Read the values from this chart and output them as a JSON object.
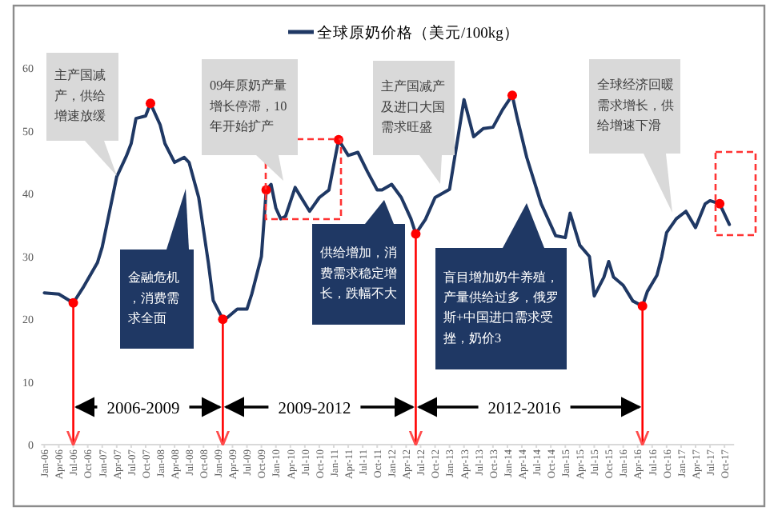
{
  "chart_data": {
    "type": "line",
    "legend": "top",
    "ylim": [
      0,
      60
    ],
    "yticks": [
      0,
      10,
      20,
      30,
      40,
      50,
      60
    ],
    "xlim": [
      "2006-01",
      "2017-12"
    ],
    "xticks": [
      {
        "value": "2006-01",
        "label": "Jan-06"
      },
      {
        "value": "2006-04",
        "label": "Apr-06"
      },
      {
        "value": "2006-07",
        "label": "Jul-06"
      },
      {
        "value": "2006-10",
        "label": "Oct-06"
      },
      {
        "value": "2007-01",
        "label": "Jan-07"
      },
      {
        "value": "2007-04",
        "label": "Apr-07"
      },
      {
        "value": "2007-07",
        "label": "Jul-07"
      },
      {
        "value": "2007-10",
        "label": "Oct-07"
      },
      {
        "value": "2008-01",
        "label": "Jan-08"
      },
      {
        "value": "2008-04",
        "label": "Apr-08"
      },
      {
        "value": "2008-07",
        "label": "Jul-08"
      },
      {
        "value": "2008-10",
        "label": "Oct-08"
      },
      {
        "value": "2009-01",
        "label": "Jan-09"
      },
      {
        "value": "2009-04",
        "label": "Apr-09"
      },
      {
        "value": "2009-07",
        "label": "Jul-09"
      },
      {
        "value": "2009-10",
        "label": "Oct-09"
      },
      {
        "value": "2010-01",
        "label": "Jan-10"
      },
      {
        "value": "2010-04",
        "label": "Apr-10"
      },
      {
        "value": "2010-07",
        "label": "Jul-10"
      },
      {
        "value": "2010-10",
        "label": "Oct-10"
      },
      {
        "value": "2011-01",
        "label": "Jan-11"
      },
      {
        "value": "2011-04",
        "label": "Apr-11"
      },
      {
        "value": "2011-07",
        "label": "Jul-11"
      },
      {
        "value": "2011-10",
        "label": "Oct-11"
      },
      {
        "value": "2012-01",
        "label": "Jan-12"
      },
      {
        "value": "2012-04",
        "label": "Apr-12"
      },
      {
        "value": "2012-07",
        "label": "Jul-12"
      },
      {
        "value": "2012-10",
        "label": "Oct-12"
      },
      {
        "value": "2013-01",
        "label": "Jan-13"
      },
      {
        "value": "2013-04",
        "label": "Apr-13"
      },
      {
        "value": "2013-07",
        "label": "Jul-13"
      },
      {
        "value": "2013-10",
        "label": "Oct-13"
      },
      {
        "value": "2014-01",
        "label": "Jan-14"
      },
      {
        "value": "2014-04",
        "label": "Apr-14"
      },
      {
        "value": "2014-07",
        "label": "Jul-14"
      },
      {
        "value": "2014-10",
        "label": "Oct-14"
      },
      {
        "value": "2015-01",
        "label": "Jan-15"
      },
      {
        "value": "2015-04",
        "label": "Apr-15"
      },
      {
        "value": "2015-07",
        "label": "Jul-15"
      },
      {
        "value": "2015-10",
        "label": "Oct-15"
      },
      {
        "value": "2016-01",
        "label": "Jan-16"
      },
      {
        "value": "2016-04",
        "label": "Apr-16"
      },
      {
        "value": "2016-07",
        "label": "Jul-16"
      },
      {
        "value": "2016-10",
        "label": "Oct-16"
      },
      {
        "value": "2017-01",
        "label": "Jan-17"
      },
      {
        "value": "2017-04",
        "label": "Apr-17"
      },
      {
        "value": "2017-07",
        "label": "Jul-17"
      },
      {
        "value": "2017-10",
        "label": "Oct-17"
      }
    ],
    "series": [
      {
        "name": "全球原奶价格（美元/100kg）",
        "color": "#1f3864",
        "x": [
          "2006-01",
          "2006-04",
          "2006-07",
          "2006-09",
          "2006-12",
          "2007-01",
          "2007-04",
          "2007-06",
          "2007-07",
          "2007-08",
          "2007-10",
          "2007-11",
          "2008-01",
          "2008-02",
          "2008-04",
          "2008-06",
          "2008-07",
          "2008-09",
          "2008-11",
          "2008-12",
          "2009-02",
          "2009-03",
          "2009-05",
          "2009-07",
          "2009-08",
          "2009-10",
          "2009-11",
          "2009-12",
          "2010-01",
          "2010-02",
          "2010-03",
          "2010-05",
          "2010-06",
          "2010-08",
          "2010-10",
          "2010-12",
          "2011-02",
          "2011-04",
          "2011-06",
          "2011-08",
          "2011-10",
          "2011-11",
          "2012-01",
          "2012-03",
          "2012-05",
          "2012-06",
          "2012-08",
          "2012-10",
          "2013-01",
          "2013-04",
          "2013-06",
          "2013-08",
          "2013-10",
          "2013-12",
          "2014-02",
          "2014-03",
          "2014-05",
          "2014-08",
          "2014-11",
          "2015-01",
          "2015-02",
          "2015-04",
          "2015-06",
          "2015-07",
          "2015-09",
          "2015-10",
          "2015-11",
          "2016-01",
          "2016-03",
          "2016-05",
          "2016-06",
          "2016-08",
          "2016-09",
          "2016-10",
          "2016-12",
          "2017-02",
          "2017-04",
          "2017-06",
          "2017-07",
          "2017-09",
          "2017-11"
        ],
        "values": [
          24.2,
          24,
          22.6,
          25,
          29,
          31.5,
          42.7,
          46,
          48,
          52,
          52.4,
          54.4,
          51,
          48,
          45,
          45.8,
          45,
          39.4,
          29,
          23,
          20,
          20.3,
          21.6,
          21.6,
          24,
          30,
          40.6,
          41.5,
          37.7,
          36,
          36.4,
          41,
          39.7,
          37.2,
          39.4,
          40.6,
          48.6,
          46.1,
          46.6,
          43.5,
          40.6,
          40.6,
          41.5,
          39.4,
          36,
          33.6,
          35.9,
          39.4,
          40.7,
          55,
          49.1,
          50.4,
          50.6,
          53.4,
          55.7,
          52.2,
          45.8,
          38.4,
          33.3,
          33,
          36.9,
          31.8,
          30,
          23.7,
          26.7,
          29.2,
          26.7,
          25.4,
          22.9,
          22.1,
          24.4,
          27,
          30,
          33.8,
          36,
          37.2,
          34.6,
          38.4,
          38.9,
          38.4,
          35.1
        ]
      },
      {
        "type": "scatter",
        "color": "#ff0000",
        "x": [
          "2006-07",
          "2007-11",
          "2009-02",
          "2009-11",
          "2011-02",
          "2012-06",
          "2014-02",
          "2016-05",
          "2017-09"
        ],
        "values": [
          22.6,
          54.4,
          20,
          40.6,
          48.6,
          33.6,
          55.7,
          22.1,
          38.4
        ]
      }
    ],
    "ref_lines": [
      {
        "axis": "x",
        "value": "2006-07",
        "color": "#ff0000"
      },
      {
        "axis": "x",
        "value": "2009-02",
        "color": "#ff0000"
      },
      {
        "axis": "x",
        "value": "2012-06",
        "color": "#ff0000"
      },
      {
        "axis": "x",
        "value": "2016-05",
        "color": "#ff0000"
      }
    ],
    "annotations": [
      "主产国减产，供给增速放缓",
      "09年原奶产量增长停滞，10年开始扩产",
      "主产国减产及进口大国需求旺盛",
      "全球经济回暖需求增长，供给增速下滑",
      "金融危机，消费需求全面",
      "供给增加，消费需求稳定增长，跌幅不大",
      "盲目增加奶牛养殖，产量供给过多，俄罗斯+中国进口需求受挫，奶价3",
      {
        "text": "2006-2009",
        "x": "2006-07",
        "y": 6
      },
      {
        "text": "2009-2012",
        "x": "2009-02",
        "y": 6
      },
      {
        "text": "2012-2016",
        "x": "2012-06",
        "y": 6
      }
    ]
  }
}
